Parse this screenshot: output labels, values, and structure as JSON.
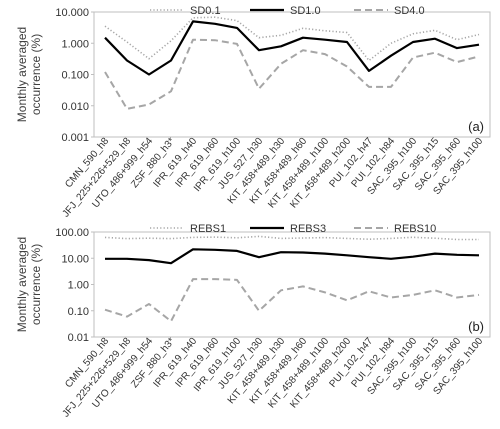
{
  "chart_data": [
    {
      "type": "line",
      "panel_label": "(a)",
      "ylabel": "Monthly averaged occurrence (%)",
      "ylabel_lines": [
        "Monthly averaged",
        "occurrence (%)"
      ],
      "yscale": "log",
      "ylim": [
        0.001,
        10
      ],
      "yticks": [
        "0.001",
        "0.010",
        "0.100",
        "1.000",
        "10.000"
      ],
      "grid": false,
      "legend_position": "top",
      "categories": [
        "CMN_590_h8",
        "JFJ_225+226+529_h8",
        "UTO_486+999_h54",
        "ZSF_880_h3*",
        "IPR_619_h40",
        "IPR_619_h60",
        "IPR_619_h100",
        "JUS_527_h30",
        "KIT_458+489_h30",
        "KIT_458+489_h60",
        "KIT_458+489_h100",
        "KIT_458+489_h200",
        "PUI_102_h47",
        "PUI_102_h84",
        "SAC_395_h100",
        "SAC_395_h15",
        "SAC_395_h60",
        "SAC_395_h100"
      ],
      "series": [
        {
          "name": "SD0.1",
          "style": "dotted",
          "color": "#a6a6a6",
          "values": [
            3.5,
            1.1,
            0.32,
            1.2,
            6.5,
            6.8,
            5.3,
            1.5,
            1.8,
            3.0,
            2.5,
            2.2,
            0.28,
            1.0,
            2.0,
            2.6,
            1.3,
            1.9
          ]
        },
        {
          "name": "SD1.0",
          "style": "solid",
          "color": "#000000",
          "values": [
            1.5,
            0.28,
            0.1,
            0.28,
            5.0,
            4.2,
            3.1,
            0.6,
            0.8,
            1.5,
            1.3,
            1.1,
            0.13,
            0.4,
            1.1,
            1.4,
            0.7,
            0.9
          ]
        },
        {
          "name": "SD4.0",
          "style": "dashed",
          "color": "#a6a6a6",
          "values": [
            0.12,
            0.008,
            0.011,
            0.029,
            1.3,
            1.25,
            0.95,
            0.035,
            0.22,
            0.6,
            0.45,
            0.18,
            0.04,
            0.04,
            0.35,
            0.5,
            0.25,
            0.38
          ]
        }
      ]
    },
    {
      "type": "line",
      "panel_label": "(b)",
      "ylabel": "Monthly averaged occurrence (%)",
      "ylabel_lines": [
        "Monthly averaged",
        "occurrence (%)"
      ],
      "yscale": "log",
      "ylim": [
        0.01,
        100
      ],
      "yticks": [
        "0.01",
        "0.10",
        "1.00",
        "10.00",
        "100.00"
      ],
      "grid": false,
      "legend_position": "top",
      "categories": [
        "CMN_590_h8",
        "JFJ_225+226+529_h8",
        "UTO_486+999_h54",
        "ZSF_880_h3*",
        "IPR_619_h40",
        "IPR_619_h60",
        "IPR_619_h100",
        "JUS_527_h30",
        "KIT_458+489_h30",
        "KIT_458+489_h60",
        "KIT_458+489_h100",
        "KIT_458+489_h200",
        "PUI_102_h47",
        "PUI_102_h84",
        "SAC_395_h100",
        "SAC_395_h15",
        "SAC_395_h60",
        "SAC_395_h100"
      ],
      "series": [
        {
          "name": "REBS1",
          "style": "dotted",
          "color": "#a6a6a6",
          "values": [
            62,
            56,
            58,
            56,
            62,
            64,
            60,
            68,
            57,
            59,
            61,
            57,
            53,
            57,
            63,
            58,
            52,
            52
          ]
        },
        {
          "name": "REBS3",
          "style": "solid",
          "color": "#000000",
          "values": [
            9.5,
            9.5,
            8.5,
            6.5,
            22,
            21,
            19,
            11,
            17,
            16.5,
            15,
            13,
            11,
            9.5,
            11.5,
            15,
            13.5,
            13
          ]
        },
        {
          "name": "REBS10",
          "style": "dashed",
          "color": "#a6a6a6",
          "values": [
            0.11,
            0.06,
            0.18,
            0.04,
            1.6,
            1.6,
            1.5,
            0.1,
            0.6,
            0.85,
            0.5,
            0.25,
            0.55,
            0.32,
            0.4,
            0.6,
            0.32,
            0.4
          ]
        }
      ]
    }
  ]
}
